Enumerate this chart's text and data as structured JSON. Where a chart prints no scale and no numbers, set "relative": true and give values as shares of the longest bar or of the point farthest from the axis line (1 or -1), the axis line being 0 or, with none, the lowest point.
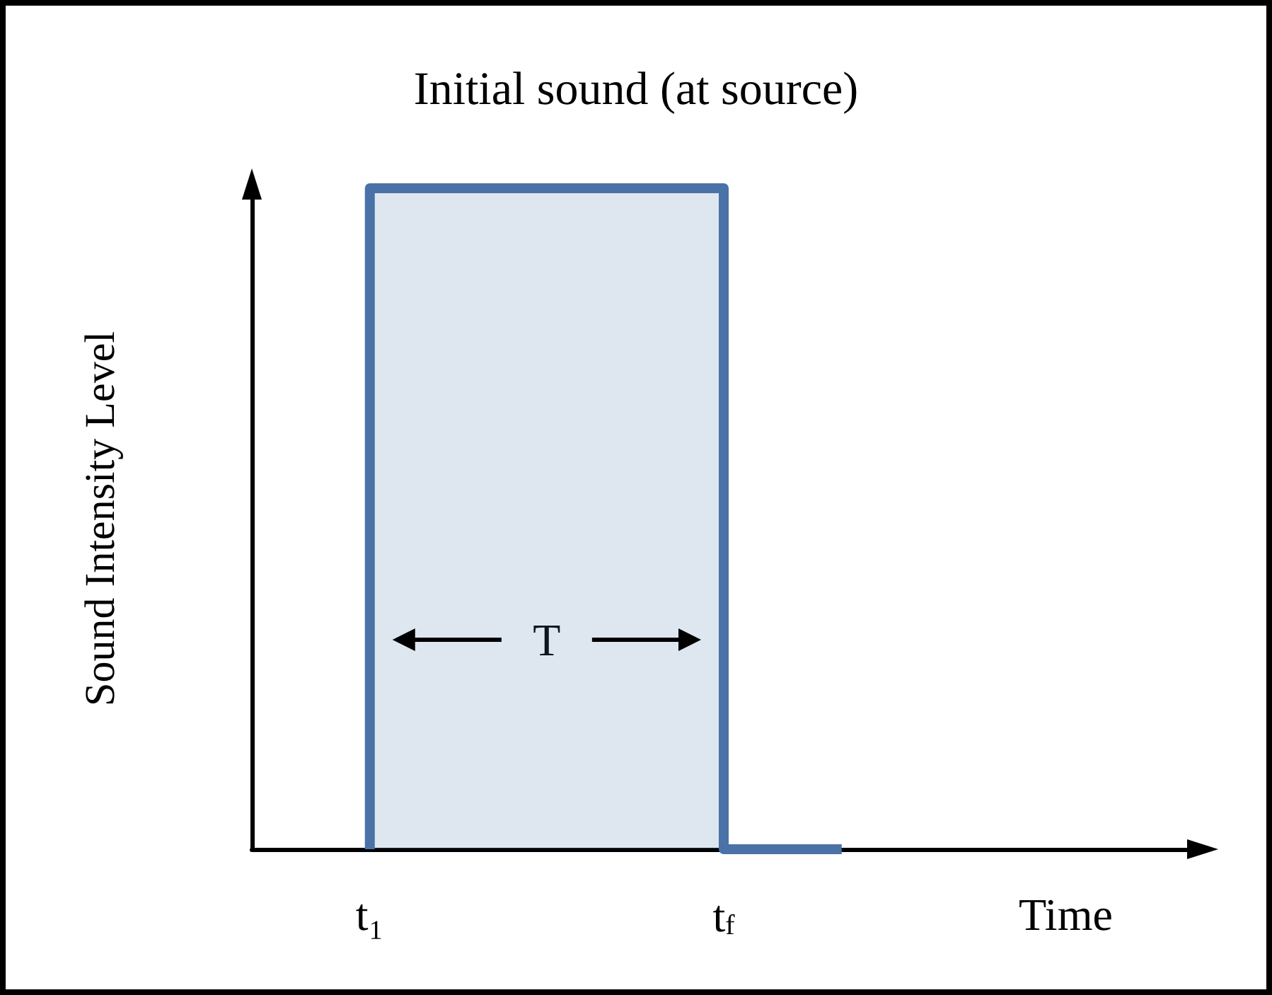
{
  "chart_data": {
    "type": "step",
    "title": "Initial sound (at source)",
    "xlabel": "Time",
    "ylabel": "Sound Intensity Level",
    "relative": true,
    "marker": "none",
    "categories": [
      null,
      "t₁",
      null,
      null,
      "t$_{f}$",
      null,
      null,
      null,
      null
    ],
    "series": [
      {
        "color": "#4a72a6",
        "values": [
          null,
          0,
          1,
          1,
          1,
          0,
          null,
          null,
          null
        ]
      }
    ],
    "annotations": [
      "T"
    ]
  }
}
